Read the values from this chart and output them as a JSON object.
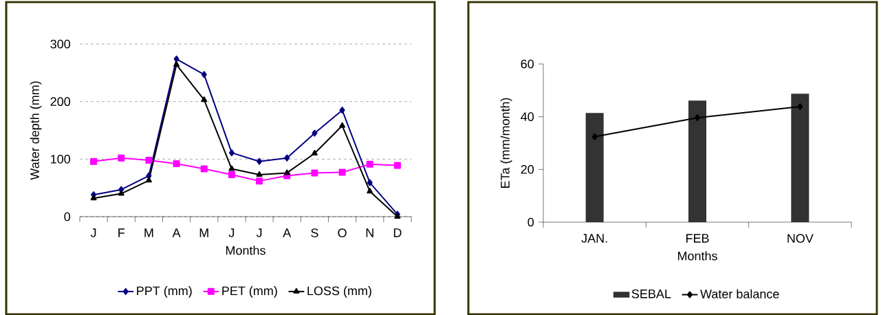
{
  "chart_data": [
    {
      "type": "line",
      "xlabel": "Months",
      "ylabel": "Water depth (mm)",
      "categories": [
        "J",
        "F",
        "M",
        "A",
        "M",
        "J",
        "J",
        "A",
        "S",
        "O",
        "N",
        "D"
      ],
      "series": [
        {
          "name": "PPT (mm)",
          "color": "#000080",
          "marker": "diamond",
          "values": [
            38,
            47,
            71,
            274,
            247,
            111,
            96,
            102,
            145,
            185,
            59,
            4
          ]
        },
        {
          "name": "PET (mm)",
          "color": "#ff00ff",
          "marker": "square",
          "values": [
            96,
            102,
            98,
            92,
            83,
            73,
            62,
            71,
            76,
            77,
            91,
            89
          ]
        },
        {
          "name": "LOSS (mm)",
          "color": "#000000",
          "marker": "triangle",
          "values": [
            32,
            40,
            63,
            264,
            203,
            83,
            73,
            76,
            110,
            158,
            44,
            0
          ]
        }
      ],
      "ylim": [
        0,
        300
      ],
      "yticks": [
        0,
        100,
        200,
        300
      ],
      "grid": "y",
      "legend": "bottom"
    },
    {
      "type": "bar",
      "xlabel": "Months",
      "ylabel": "ETa (mm/month)",
      "categories": [
        "JAN.",
        "FEB",
        "NOV"
      ],
      "series": [
        {
          "name": "SEBAL",
          "type": "bar",
          "color": "#333333",
          "values": [
            41.4,
            46.1,
            48.7
          ]
        },
        {
          "name": "Water balance",
          "type": "line",
          "color": "#000000",
          "marker": "diamond",
          "values": [
            32.4,
            39.6,
            43.8
          ]
        }
      ],
      "ylim": [
        0,
        60
      ],
      "yticks": [
        0,
        20,
        40,
        60
      ],
      "legend": "bottom"
    }
  ]
}
